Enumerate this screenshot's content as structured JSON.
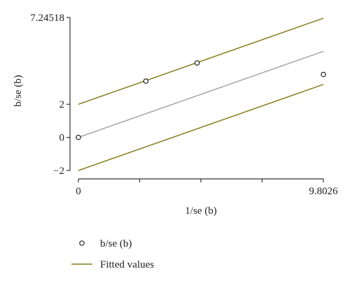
{
  "chart_data": {
    "type": "scatter",
    "xlabel": "1/se (b)",
    "ylabel": "b/se (b)",
    "xlim": [
      0,
      9.8026
    ],
    "ylim": [
      -2,
      7.24518
    ],
    "x_ticks": [
      {
        "value": 0,
        "label": "0"
      },
      {
        "value": 2.45,
        "label": ""
      },
      {
        "value": 4.9,
        "label": ""
      },
      {
        "value": 7.35,
        "label": ""
      },
      {
        "value": 9.8026,
        "label": "9.8026"
      }
    ],
    "y_ticks": [
      {
        "value": -2,
        "label": "−2"
      },
      {
        "value": 0,
        "label": "0"
      },
      {
        "value": 2,
        "label": "2"
      },
      {
        "value": 7.24518,
        "label": "7.24518"
      }
    ],
    "points": [
      {
        "x": 0,
        "y": 0
      },
      {
        "x": 2.7,
        "y": 3.4
      },
      {
        "x": 4.75,
        "y": 4.5
      },
      {
        "x": 9.8026,
        "y": 3.8
      }
    ],
    "fitted_lines": [
      {
        "role": "upper",
        "color": "#8a7d1e",
        "from": {
          "x": 0,
          "y": 2
        },
        "to": {
          "x": 9.8026,
          "y": 7.2
        }
      },
      {
        "role": "center",
        "color": "#a6a6a6",
        "from": {
          "x": 0,
          "y": 0
        },
        "to": {
          "x": 9.8026,
          "y": 5.2
        }
      },
      {
        "role": "lower",
        "color": "#8a7d1e",
        "from": {
          "x": 0,
          "y": -2
        },
        "to": {
          "x": 9.8026,
          "y": 3.2
        }
      }
    ],
    "legend": {
      "position": "bottom-left",
      "entries": [
        {
          "label": "b/se (b)",
          "marker": "hollow-circle"
        },
        {
          "label": "Fitted values",
          "marker": "line",
          "color": "#8a7d1e"
        }
      ]
    }
  }
}
